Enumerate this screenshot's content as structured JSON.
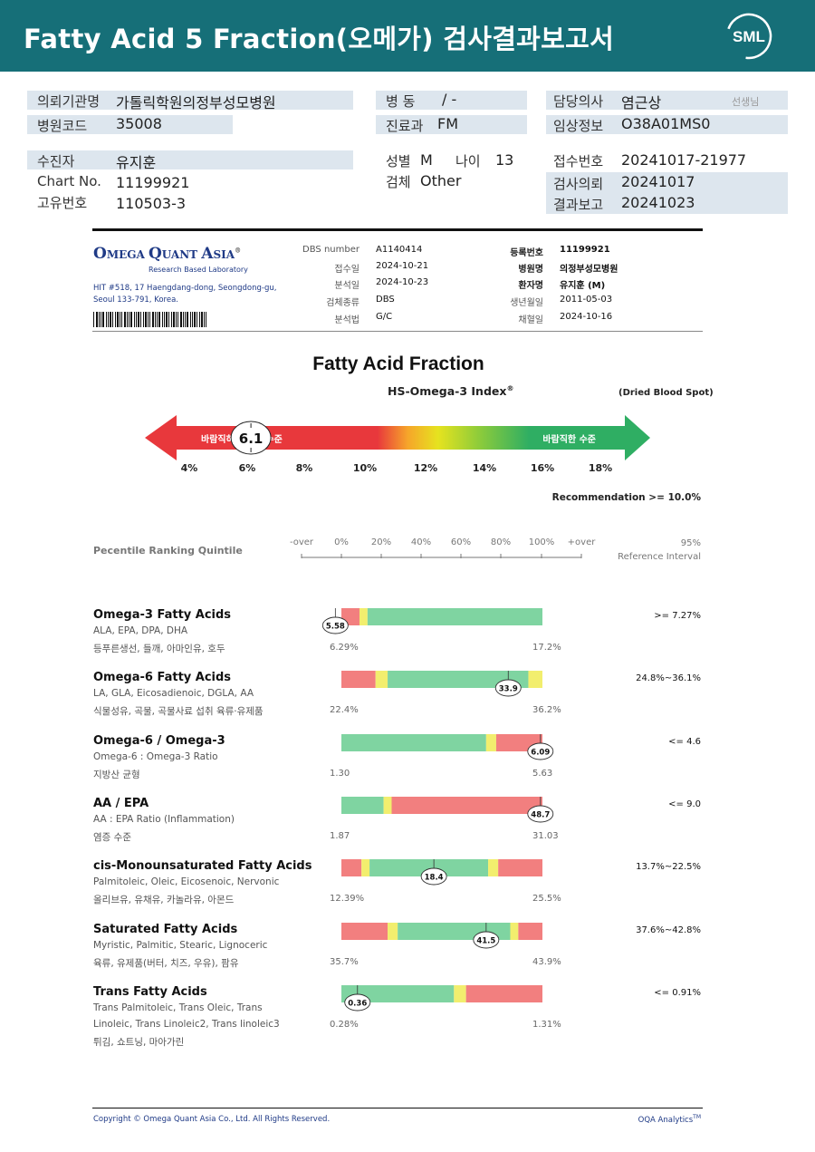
{
  "header": {
    "title": "Fatty Acid 5 Fraction(오메가) 검사결과보고서",
    "logo_text": "SML"
  },
  "info": {
    "inst_label": "의뢰기관명",
    "inst_value": "가톨릭학원의정부성모병원",
    "code_label": "병원코드",
    "code_value": "35008",
    "ward_label": "병  동",
    "ward_value": "/ -",
    "dept_label": "진료과",
    "dept_value": "FM",
    "doctor_label": "담당의사",
    "doctor_value": "염근상",
    "doctor_suffix": "선생님",
    "clinical_label": "임상정보",
    "clinical_value": "O38A01MS0",
    "patient_label": "수진자",
    "patient_value": "유지훈",
    "chart_label": "Chart No.",
    "chart_value": "11199921",
    "uid_label": "고유번호",
    "uid_value": "110503-3",
    "sex_label": "성별",
    "sex_value": "M",
    "age_label": "나이",
    "age_value": "13",
    "specimen_label": "검체",
    "specimen_value": "Other",
    "receipt_label": "접수번호",
    "receipt_value": "20241017-21977",
    "request_label": "검사의뢰",
    "request_value": "20241017",
    "report_label": "결과보고",
    "report_value": "20241023"
  },
  "oqa": {
    "name_parts": [
      "O",
      "MEGA ",
      "Q",
      "UANT ",
      "A",
      "SIA"
    ],
    "reg": "®",
    "tagline": "Research Based Laboratory",
    "address1": "HIT #518, 17 Haengdang-dong, Seongdong-gu,",
    "address2": "Seoul 133-791, Korea.",
    "fields_left": [
      {
        "label": "DBS number",
        "value": "A1140414"
      },
      {
        "label": "접수일",
        "value": "2024-10-21"
      },
      {
        "label": "분석일",
        "value": "2024-10-23"
      },
      {
        "label": "검체종류",
        "value": "DBS"
      },
      {
        "label": "분석법",
        "value": "G/C"
      }
    ],
    "fields_right": [
      {
        "label": "등록번호",
        "value": "11199921"
      },
      {
        "label": "병원명",
        "value": "의정부성모병원"
      },
      {
        "label": "환자명",
        "value": "유지훈 (M)"
      },
      {
        "label": "생년월일",
        "value": "2011-05-03"
      },
      {
        "label": "채혈일",
        "value": "2024-10-16"
      }
    ]
  },
  "section_title": "Fatty Acid Fraction",
  "index": {
    "title": "HS-Omega-3 Index",
    "title_sup": "®",
    "sample": "(Dried Blood Spot)",
    "value": "6.1",
    "value_num": 6.1,
    "left_label": "바람직하지 않은 수준",
    "right_label": "바람직한 수준",
    "ticks": [
      "4%",
      "6%",
      "8%",
      "10%",
      "12%",
      "14%",
      "16%",
      "18%"
    ],
    "recommendation": "Recommendation  >= 10.0%"
  },
  "scale": {
    "title": "Pecentile Ranking Quintile",
    "ticks": [
      "-over",
      "0%",
      "20%",
      "40%",
      "60%",
      "80%",
      "100%",
      "+over"
    ],
    "ref_title_1": "95%",
    "ref_title_2": "Reference Interval"
  },
  "rows": [
    {
      "title": "Omega-3 Fatty Acids",
      "sub": "ALA, EPA, DPA, DHA",
      "kor": "등푸른생선, 들깨, 아마인유, 호두",
      "kor2": "",
      "low": "6.29%",
      "high": "17.2%",
      "ref": ">= 7.27%",
      "value": "5.58",
      "pos": -0.03,
      "segments": [
        {
          "from": 0,
          "to": 0.09,
          "color": "#f27f7f"
        },
        {
          "from": 0.09,
          "to": 0.13,
          "color": "#f2ee6e"
        },
        {
          "from": 0.13,
          "to": 1.0,
          "color": "#7fd4a1"
        }
      ]
    },
    {
      "title": "Omega-6 Fatty Acids",
      "sub": "LA, GLA, Eicosadienoic, DGLA, AA",
      "kor": "식물성유, 곡물, 곡물사료 섭취 육류·유제품",
      "kor2": "",
      "low": "22.4%",
      "high": "36.2%",
      "ref": "24.8%~36.1%",
      "value": "33.9",
      "pos": 0.83,
      "segments": [
        {
          "from": 0,
          "to": 0.17,
          "color": "#f27f7f"
        },
        {
          "from": 0.17,
          "to": 0.23,
          "color": "#f2ee6e"
        },
        {
          "from": 0.23,
          "to": 0.93,
          "color": "#7fd4a1"
        },
        {
          "from": 0.93,
          "to": 1.0,
          "color": "#f2ee6e"
        }
      ]
    },
    {
      "title": "Omega-6 / Omega-3",
      "sub": "Omega-6 : Omega-3 Ratio",
      "kor": "지방산 균형",
      "kor2": "",
      "low": "1.30",
      "high": "5.63",
      "ref": "<= 4.6",
      "value": "6.09",
      "pos": 0.99,
      "segments": [
        {
          "from": 0,
          "to": 0.72,
          "color": "#7fd4a1"
        },
        {
          "from": 0.72,
          "to": 0.77,
          "color": "#f2ee6e"
        },
        {
          "from": 0.77,
          "to": 1.0,
          "color": "#f27f7f"
        }
      ]
    },
    {
      "title": "AA / EPA",
      "sub": "AA : EPA Ratio (Inflammation)",
      "kor": "염증 수준",
      "kor2": "",
      "low": "1.87",
      "high": "31.03",
      "ref": "<= 9.0",
      "value": "48.7",
      "pos": 0.99,
      "segments": [
        {
          "from": 0,
          "to": 0.21,
          "color": "#7fd4a1"
        },
        {
          "from": 0.21,
          "to": 0.25,
          "color": "#f2ee6e"
        },
        {
          "from": 0.25,
          "to": 1.0,
          "color": "#f27f7f"
        }
      ]
    },
    {
      "title": "cis-Monounsaturated Fatty Acids",
      "sub": "Palmitoleic, Oleic, Eicosenoic, Nervonic",
      "kor": "올리브유, 유채유, 카놀라유, 아몬드",
      "kor2": "",
      "low": "12.39%",
      "high": "25.5%",
      "ref": "13.7%~22.5%",
      "value": "18.4",
      "pos": 0.46,
      "segments": [
        {
          "from": 0,
          "to": 0.1,
          "color": "#f27f7f"
        },
        {
          "from": 0.1,
          "to": 0.14,
          "color": "#f2ee6e"
        },
        {
          "from": 0.14,
          "to": 0.73,
          "color": "#7fd4a1"
        },
        {
          "from": 0.73,
          "to": 0.78,
          "color": "#f2ee6e"
        },
        {
          "from": 0.78,
          "to": 1.0,
          "color": "#f27f7f"
        }
      ]
    },
    {
      "title": "Saturated Fatty Acids",
      "sub": "Myristic, Palmitic, Stearic, Lignoceric",
      "kor": "육류, 유제품(버터, 치즈, 우유), 팜유",
      "kor2": "",
      "low": "35.7%",
      "high": "43.9%",
      "ref": "37.6%~42.8%",
      "value": "41.5",
      "pos": 0.72,
      "segments": [
        {
          "from": 0,
          "to": 0.23,
          "color": "#f27f7f"
        },
        {
          "from": 0.23,
          "to": 0.28,
          "color": "#f2ee6e"
        },
        {
          "from": 0.28,
          "to": 0.84,
          "color": "#7fd4a1"
        },
        {
          "from": 0.84,
          "to": 0.88,
          "color": "#f2ee6e"
        },
        {
          "from": 0.88,
          "to": 1.0,
          "color": "#f27f7f"
        }
      ]
    },
    {
      "title": "Trans Fatty Acids",
      "sub": "Trans Palmitoleic, Trans Oleic, Trans",
      "kor": "Linoleic, Trans Linoleic2, Trans linoleic3",
      "kor2": "튀김, 쇼트닝, 마아가린",
      "low": "0.28%",
      "high": "1.31%",
      "ref": "<= 0.91%",
      "value": "0.36",
      "pos": 0.08,
      "segments": [
        {
          "from": 0,
          "to": 0.56,
          "color": "#7fd4a1"
        },
        {
          "from": 0.56,
          "to": 0.62,
          "color": "#f2ee6e"
        },
        {
          "from": 0.62,
          "to": 1.0,
          "color": "#f27f7f"
        }
      ]
    }
  ],
  "footer": {
    "copyright": "Copyright © Omega Quant Asia Co., Ltd.  All Rights Reserved.",
    "brand": "OQA Analytics",
    "brand_sup": "TM"
  },
  "colors": {
    "header_bg": "#166f78",
    "red": "#e8383c",
    "green": "#2fae63",
    "bar_red": "#f27f7f",
    "bar_yellow": "#f2ee6e",
    "bar_green": "#7fd4a1"
  }
}
